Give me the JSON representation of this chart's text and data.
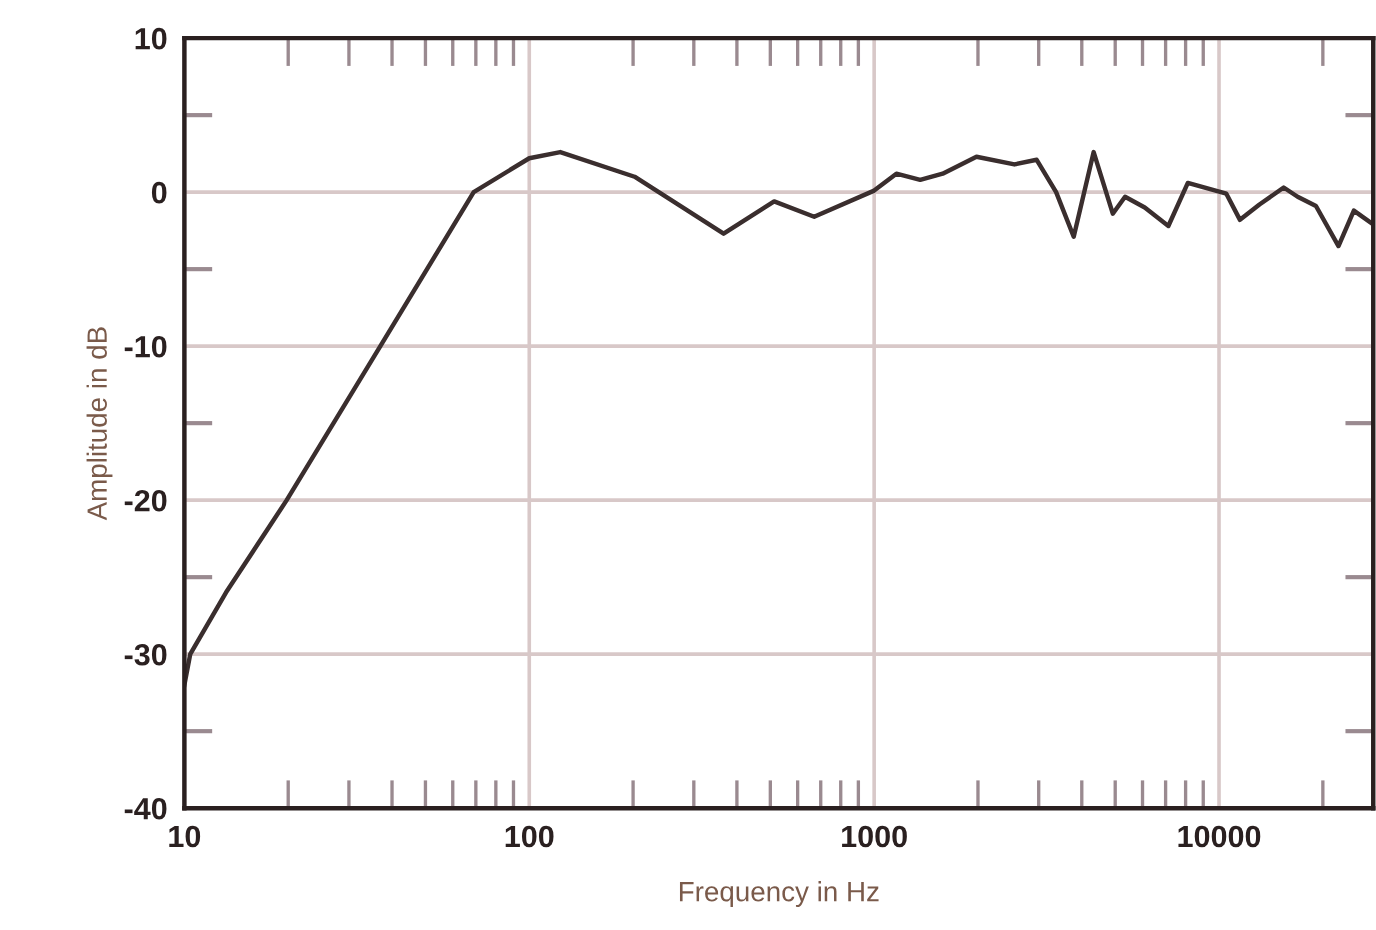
{
  "chart_data": {
    "type": "line",
    "xlabel": "Frequency in Hz",
    "ylabel": "Amplitude in dB",
    "log": "x",
    "grid": true,
    "marker": "none",
    "line_style": "solid",
    "xlim": [
      10,
      28000
    ],
    "ylim": [
      -40,
      10
    ],
    "xticks": [
      10,
      {
        "value": 20,
        "label": null
      },
      {
        "value": 30,
        "label": null
      },
      {
        "value": 40,
        "label": null
      },
      {
        "value": 50,
        "label": null
      },
      {
        "value": 60,
        "label": null
      },
      {
        "value": 70,
        "label": null
      },
      {
        "value": 80,
        "label": null
      },
      {
        "value": 90,
        "label": null
      },
      100,
      {
        "value": 200,
        "label": null
      },
      {
        "value": 300,
        "label": null
      },
      {
        "value": 400,
        "label": null
      },
      {
        "value": 500,
        "label": null
      },
      {
        "value": 600,
        "label": null
      },
      {
        "value": 700,
        "label": null
      },
      {
        "value": 800,
        "label": null
      },
      {
        "value": 900,
        "label": null
      },
      1000,
      {
        "value": 2000,
        "label": null
      },
      {
        "value": 3000,
        "label": null
      },
      {
        "value": 4000,
        "label": null
      },
      {
        "value": 5000,
        "label": null
      },
      {
        "value": 6000,
        "label": null
      },
      {
        "value": 7000,
        "label": null
      },
      {
        "value": 8000,
        "label": null
      },
      {
        "value": 9000,
        "label": null
      },
      10000,
      {
        "value": 20000,
        "label": null
      }
    ],
    "yticks": [
      -40,
      {
        "value": -35,
        "label": null
      },
      -30,
      {
        "value": -25,
        "label": null
      },
      -20,
      {
        "value": -15,
        "label": null
      },
      -10,
      {
        "value": -5,
        "label": null
      },
      0,
      {
        "value": 5,
        "label": null
      },
      10
    ],
    "series": [
      {
        "color": "#3a2e2e",
        "x": [
          10,
          10.4,
          13.2,
          19.8,
          37,
          69,
          100,
          123,
          202,
          366,
          513,
          670,
          1000,
          1160,
          1360,
          1580,
          1980,
          2550,
          2960,
          3370,
          3790,
          4330,
          4920,
          5340,
          6090,
          7130,
          8120,
          10500,
          11500,
          13100,
          15400,
          16900,
          19100,
          22200,
          24600,
          28000
        ],
        "values": [
          -32,
          -30,
          -26,
          -20,
          -10,
          0,
          2.2,
          2.6,
          1,
          -2.7,
          -0.6,
          -1.6,
          0.1,
          1.2,
          0.8,
          1.2,
          2.3,
          1.8,
          2.1,
          0,
          -2.9,
          2.6,
          -1.4,
          -0.3,
          -1,
          -2.2,
          0.6,
          -0.1,
          -1.8,
          -0.8,
          0.3,
          -0.3,
          -0.9,
          -3.5,
          -1.2,
          -2.1
        ]
      }
    ]
  }
}
